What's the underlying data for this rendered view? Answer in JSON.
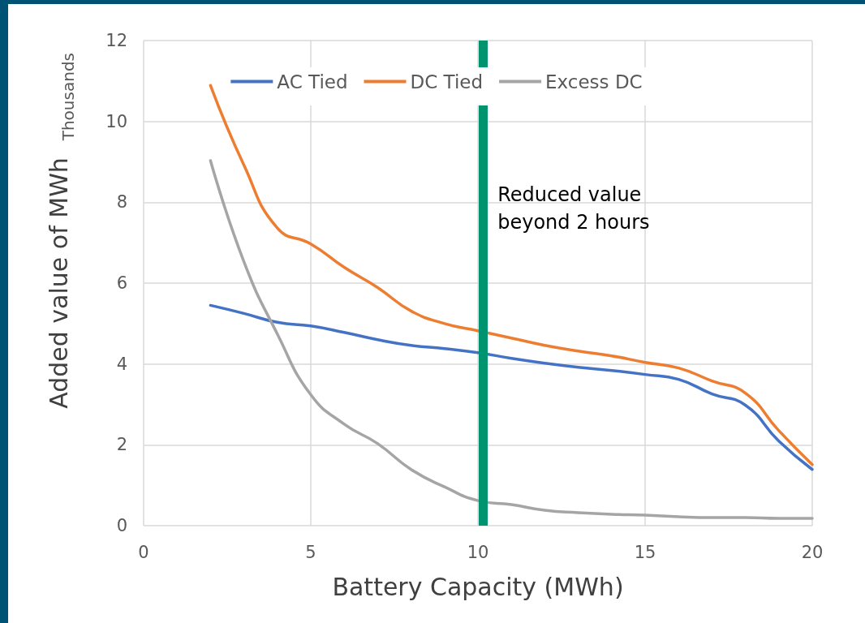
{
  "chart_data": {
    "type": "line",
    "xlabel": "Battery Capacity (MWh)",
    "ylabel": "Added value of MWh",
    "annotations": [
      "Thousands"
    ],
    "x": [
      2,
      3,
      4,
      5,
      6,
      7,
      8,
      9,
      10,
      11,
      12,
      13,
      14,
      15,
      16,
      17,
      18,
      19,
      20
    ],
    "series": [
      {
        "name": "AC Tied",
        "color": "#4472c4",
        "values": [
          5.45,
          5.25,
          5.03,
          4.94,
          4.78,
          4.6,
          4.46,
          4.38,
          4.28,
          4.14,
          4.02,
          3.92,
          3.84,
          3.74,
          3.62,
          3.26,
          2.98,
          2.09,
          1.39
        ]
      },
      {
        "name": "DC Tied",
        "color": "#ed7d31",
        "values": [
          10.89,
          8.92,
          7.36,
          6.97,
          6.39,
          5.89,
          5.31,
          5.0,
          4.82,
          4.64,
          4.46,
          4.32,
          4.2,
          4.04,
          3.9,
          3.58,
          3.28,
          2.35,
          1.51
        ]
      },
      {
        "name": "Excess DC",
        "color": "#a5a5a5",
        "values": [
          9.03,
          6.53,
          4.74,
          3.24,
          2.51,
          2.03,
          1.39,
          0.96,
          0.62,
          0.52,
          0.38,
          0.32,
          0.28,
          0.26,
          0.22,
          0.2,
          0.2,
          0.18,
          0.18
        ]
      }
    ],
    "xlim": [
      0,
      20
    ],
    "xticks": [
      0,
      5,
      10,
      15,
      20
    ],
    "ylim": [
      0,
      12
    ],
    "yticks": [
      0,
      2,
      4,
      6,
      8,
      10,
      12
    ],
    "ref_lines": [
      {
        "axis": "x",
        "value": 10.15,
        "label": "Reduced value\nbeyond 2 hours",
        "color": "#00936f"
      }
    ],
    "grid": true,
    "legend": "top",
    "marker": "none",
    "line_style": "solid"
  }
}
